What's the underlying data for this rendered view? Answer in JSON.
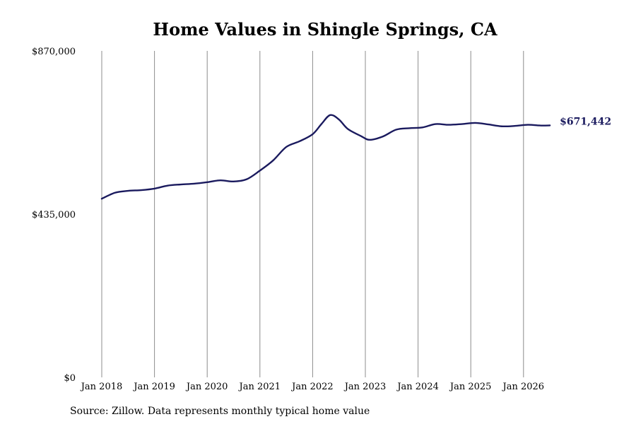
{
  "chart_data": {
    "type": "line",
    "title": "Home Values in Shingle Springs, CA",
    "xlabel": "",
    "ylabel": "",
    "x_tick_labels": [
      "Jan 2018",
      "Jan 2019",
      "Jan 2020",
      "Jan 2021",
      "Jan 2022",
      "Jan 2023",
      "Jan 2024",
      "Jan 2025",
      "Jan 2026"
    ],
    "y_tick_labels": [
      "$0",
      "$435,000",
      "$870,000"
    ],
    "y_ticks": [
      0,
      435000,
      870000
    ],
    "ylim": [
      0,
      870000
    ],
    "xlim": [
      "2018-01",
      "2026-07"
    ],
    "grid": "vertical",
    "legend": "none",
    "end_label": "$671,442",
    "series": [
      {
        "color": "#1a1a5e",
        "points": [
          [
            "2018-01",
            476000
          ],
          [
            "2018-04",
            492000
          ],
          [
            "2018-07",
            497000
          ],
          [
            "2018-10",
            499000
          ],
          [
            "2019-01",
            503000
          ],
          [
            "2019-04",
            511000
          ],
          [
            "2019-07",
            514000
          ],
          [
            "2019-10",
            516000
          ],
          [
            "2020-01",
            520000
          ],
          [
            "2020-04",
            525000
          ],
          [
            "2020-07",
            522000
          ],
          [
            "2020-10",
            528000
          ],
          [
            "2021-01",
            551000
          ],
          [
            "2021-04",
            578000
          ],
          [
            "2021-07",
            614000
          ],
          [
            "2021-10",
            629000
          ],
          [
            "2022-01",
            648000
          ],
          [
            "2022-03",
            675000
          ],
          [
            "2022-05",
            699000
          ],
          [
            "2022-07",
            687000
          ],
          [
            "2022-09",
            662000
          ],
          [
            "2022-12",
            643000
          ],
          [
            "2023-02",
            633000
          ],
          [
            "2023-05",
            642000
          ],
          [
            "2023-08",
            660000
          ],
          [
            "2023-11",
            664000
          ],
          [
            "2024-02",
            666000
          ],
          [
            "2024-05",
            675000
          ],
          [
            "2024-08",
            673000
          ],
          [
            "2024-11",
            675000
          ],
          [
            "2025-02",
            678000
          ],
          [
            "2025-05",
            674000
          ],
          [
            "2025-08",
            669000
          ],
          [
            "2025-11",
            670000
          ],
          [
            "2026-02",
            673000
          ],
          [
            "2026-05",
            671000
          ],
          [
            "2026-07",
            671442
          ]
        ]
      }
    ]
  }
}
